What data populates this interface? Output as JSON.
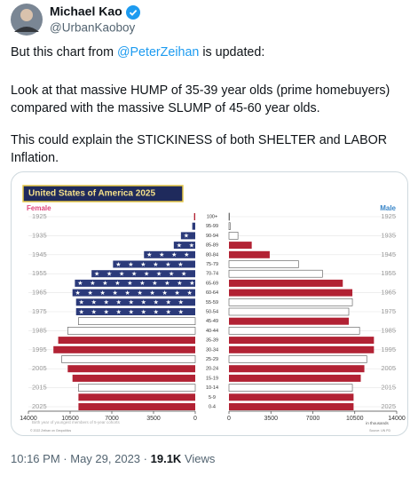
{
  "author": {
    "name": "Michael Kao",
    "handle": "@UrbanKaoboy"
  },
  "text": {
    "line1_before": "But this chart from ",
    "mention": "@PeterZeihan",
    "line1_after": " is updated:",
    "line2": "Look at that massive HUMP of 35-39 year olds (prime homebuyers)",
    "line3": "compared with the massive SLUMP of 45-60 year olds.",
    "line4": "This could explain the STICKINESS of both SHELTER and LABOR",
    "line5": "Inflation."
  },
  "footer": {
    "time": "10:16 PM",
    "separator": "·",
    "date": "May 29, 2023",
    "views": "19.1K",
    "views_label": "Views"
  },
  "chart_data": {
    "type": "pyramid",
    "title": "United States of America 2025",
    "categories": [
      "100+",
      "95-99",
      "90-94",
      "85-89",
      "80-84",
      "75-79",
      "70-74",
      "65-69",
      "60-64",
      "55-59",
      "50-54",
      "45-49",
      "40-44",
      "35-39",
      "30-34",
      "25-29",
      "20-24",
      "15-19",
      "10-14",
      "5-9",
      "0-4"
    ],
    "year_labels": [
      "1925",
      null,
      "1935",
      null,
      "1945",
      null,
      "1955",
      null,
      "1965",
      null,
      "1975",
      null,
      "1985",
      null,
      "1995",
      null,
      "2005",
      null,
      "2015",
      null,
      "2025"
    ],
    "series": [
      {
        "name": "Female",
        "color": "#e0457b",
        "values": [
          100,
          250,
          1200,
          1800,
          4300,
          6900,
          8700,
          10100,
          10300,
          10000,
          10000,
          9800,
          10700,
          11500,
          11900,
          11200,
          10700,
          10300,
          9800,
          9800,
          9800
        ],
        "colors": [
          "#b22234",
          "#2b3a7a",
          "#2b3a7a",
          "#2b3a7a",
          "#2b3a7a",
          "#2b3a7a",
          "#2b3a7a",
          "#2b3a7a",
          "#2b3a7a",
          "#2b3a7a",
          "#2b3a7a",
          "#ffffff",
          "#ffffff",
          "#b22234",
          "#b22234",
          "#ffffff",
          "#b22234",
          "#b22234",
          "#ffffff",
          "#b22234",
          "#b22234"
        ]
      },
      {
        "name": "Male",
        "color": "#3a86c8",
        "values": [
          50,
          100,
          750,
          1900,
          3400,
          5800,
          7800,
          9500,
          10300,
          10300,
          10000,
          10000,
          10900,
          12100,
          12100,
          11500,
          11300,
          11000,
          10300,
          10400,
          10400
        ],
        "colors": [
          "#ffffff",
          "#ffffff",
          "#ffffff",
          "#b22234",
          "#b22234",
          "#ffffff",
          "#ffffff",
          "#b22234",
          "#b22234",
          "#ffffff",
          "#ffffff",
          "#b22234",
          "#ffffff",
          "#b22234",
          "#b22234",
          "#ffffff",
          "#b22234",
          "#b22234",
          "#ffffff",
          "#b22234",
          "#b22234"
        ]
      }
    ],
    "xlim": [
      0,
      14000
    ],
    "xticks": [
      0,
      3500,
      7000,
      10500,
      14000
    ],
    "unit_note": "in thousands",
    "x_note": "Birth year of youngest members of 5-year cohorts",
    "copyright": "© 2022 Zeihan on Geopolitics",
    "source": "Source: UN PD"
  }
}
